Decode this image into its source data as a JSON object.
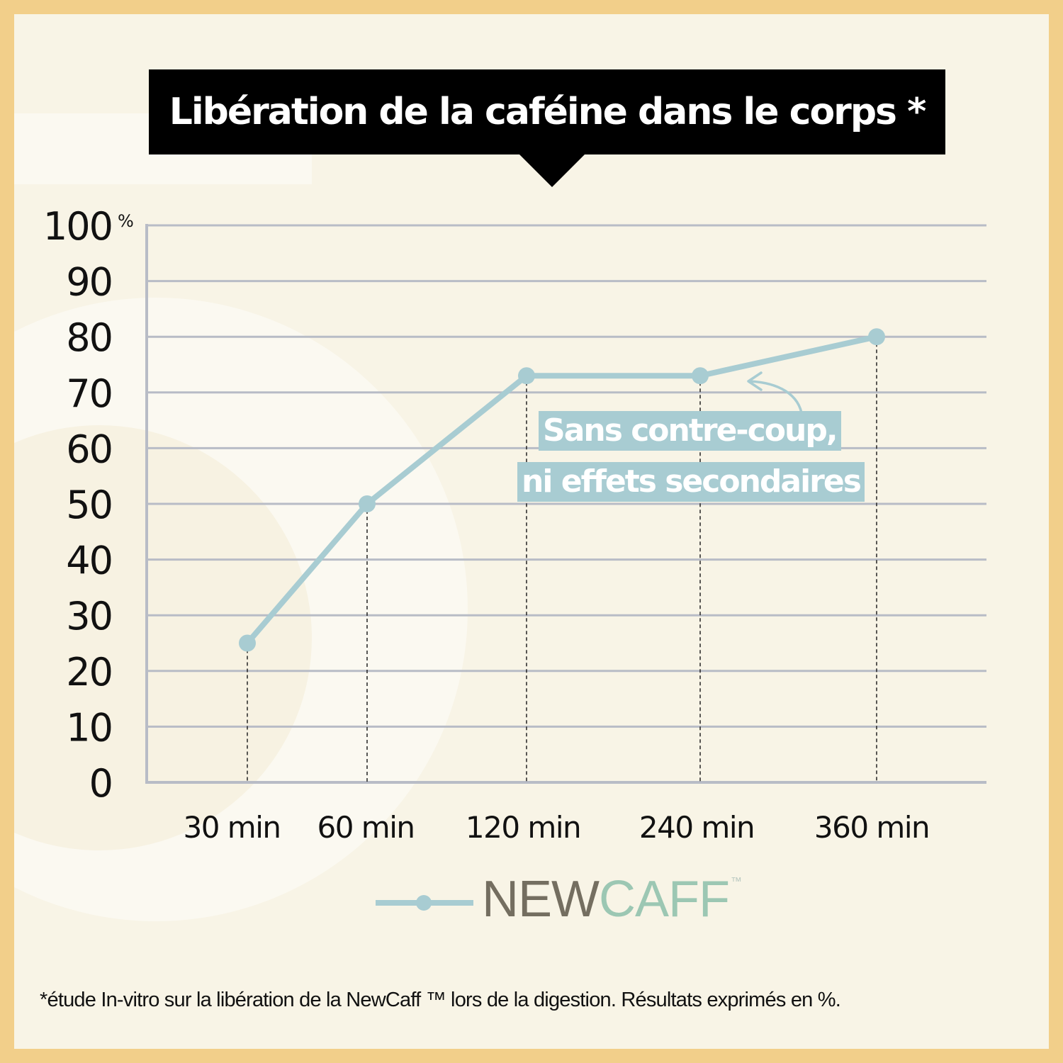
{
  "title": "Libération de la caféine dans le corps *",
  "annotation": {
    "line1": "Sans contre-coup,",
    "line2": "ni effets secondaires"
  },
  "legend": {
    "brand_part1": "NEW",
    "brand_part2": "CAFF",
    "trademark": "™"
  },
  "footnote": "*étude In-vitro sur la libération de la NewCaff ™ lors de la digestion. Résultats exprimés en %.",
  "colors": {
    "frame": "#f2cf8a",
    "background": "#f8f4e6",
    "line": "#a8ccd2",
    "grid": "#b8bcc6",
    "title_bg": "#000000"
  },
  "chart_data": {
    "type": "line",
    "categories": [
      "30 min",
      "60 min",
      "120 min",
      "240 min",
      "360 min"
    ],
    "series": [
      {
        "name": "NEWCAFF™",
        "values": [
          25,
          50,
          73,
          73,
          80
        ]
      }
    ],
    "y_ticks": [
      "0",
      "10",
      "20",
      "30",
      "40",
      "50",
      "60",
      "70",
      "80",
      "90",
      "100"
    ],
    "y_unit": "%",
    "ylim": [
      0,
      100
    ],
    "grid": true,
    "drop_lines": true,
    "legend_position": "bottom-center"
  }
}
